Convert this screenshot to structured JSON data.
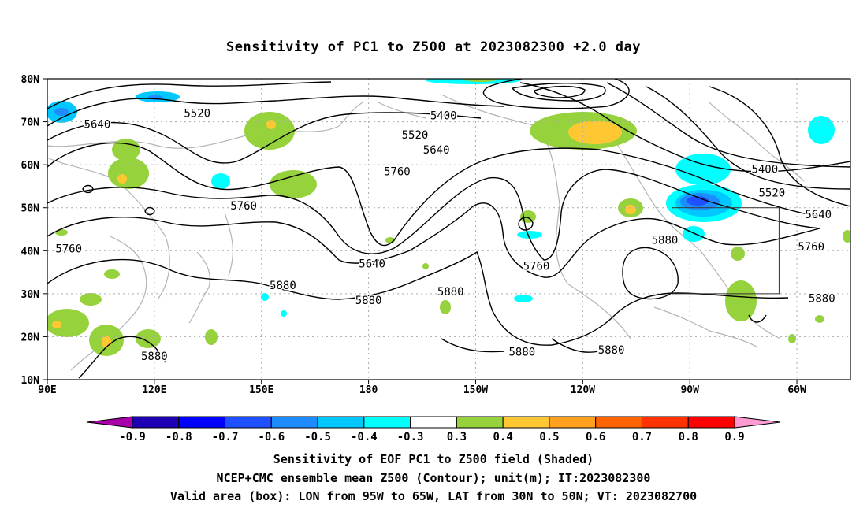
{
  "title": "Sensitivity of PC1 to Z500 at 2023082300 +2.0 day",
  "map": {
    "lat_ticks": [
      {
        "label": "80N",
        "lat": 80
      },
      {
        "label": "70N",
        "lat": 70
      },
      {
        "label": "60N",
        "lat": 60
      },
      {
        "label": "50N",
        "lat": 50
      },
      {
        "label": "40N",
        "lat": 40
      },
      {
        "label": "30N",
        "lat": 30
      },
      {
        "label": "20N",
        "lat": 20
      },
      {
        "label": "10N",
        "lat": 10
      }
    ],
    "lon_ticks": [
      {
        "label": "90E",
        "lon": 90
      },
      {
        "label": "120E",
        "lon": 120
      },
      {
        "label": "150E",
        "lon": 150
      },
      {
        "label": "180",
        "lon": 180
      },
      {
        "label": "150W",
        "lon": 210
      },
      {
        "label": "120W",
        "lon": 240
      },
      {
        "label": "90W",
        "lon": 270
      },
      {
        "label": "60W",
        "lon": 300
      }
    ],
    "lon_range": [
      90,
      315
    ],
    "lat_range": [
      10,
      80
    ],
    "valid_box": {
      "lon": [
        265,
        295
      ],
      "lat": [
        30,
        50
      ]
    },
    "contour_labels": [
      {
        "text": "5520",
        "lon": 132,
        "lat": 72
      },
      {
        "text": "5640",
        "lon": 104,
        "lat": 69.5
      },
      {
        "text": "5400",
        "lon": 201,
        "lat": 71.5
      },
      {
        "text": "5520",
        "lon": 193,
        "lat": 67
      },
      {
        "text": "5640",
        "lon": 199,
        "lat": 63.5
      },
      {
        "text": "5760",
        "lon": 188,
        "lat": 58.5
      },
      {
        "text": "5760",
        "lon": 145,
        "lat": 50.5
      },
      {
        "text": "5760",
        "lon": 96,
        "lat": 40.5
      },
      {
        "text": "5640",
        "lon": 181,
        "lat": 37
      },
      {
        "text": "5760",
        "lon": 227,
        "lat": 36.5
      },
      {
        "text": "5880",
        "lon": 263,
        "lat": 42.5
      },
      {
        "text": "5400",
        "lon": 291,
        "lat": 59
      },
      {
        "text": "5520",
        "lon": 293,
        "lat": 53.5
      },
      {
        "text": "5640",
        "lon": 306,
        "lat": 48.5
      },
      {
        "text": "5760",
        "lon": 304,
        "lat": 41
      },
      {
        "text": "5880",
        "lon": 156,
        "lat": 32
      },
      {
        "text": "5880",
        "lon": 180,
        "lat": 28.5
      },
      {
        "text": "5880",
        "lon": 203,
        "lat": 30.5
      },
      {
        "text": "5880",
        "lon": 223,
        "lat": 16.5
      },
      {
        "text": "5880",
        "lon": 248,
        "lat": 17
      },
      {
        "text": "5880",
        "lon": 120,
        "lat": 15.5
      },
      {
        "text": "5880",
        "lon": 307,
        "lat": 29
      }
    ]
  },
  "colorbar": {
    "colors": [
      "#aa00aa",
      "#1e00b4",
      "#0000ff",
      "#1e50ff",
      "#1e8cff",
      "#00c8ff",
      "#00ffff",
      "#ffffff",
      "#96d23c",
      "#ffc832",
      "#ffa01e",
      "#ff6400",
      "#ff3200",
      "#ff0000",
      "#ff9bd2"
    ],
    "labels": [
      "-0.9",
      "-0.8",
      "-0.7",
      "-0.6",
      "-0.5",
      "-0.4",
      "-0.3",
      "0.3",
      "0.4",
      "0.5",
      "0.6",
      "0.7",
      "0.8",
      "0.9"
    ]
  },
  "footer": {
    "line1": "Sensitivity of EOF PC1 to Z500 field (Shaded)",
    "line2": "NCEP+CMC ensemble mean Z500 (Contour); unit(m); IT:2023082300",
    "line3": "Valid area (box): LON from 95W to 65W, LAT from 30N to 50N; VT: 2023082700"
  }
}
